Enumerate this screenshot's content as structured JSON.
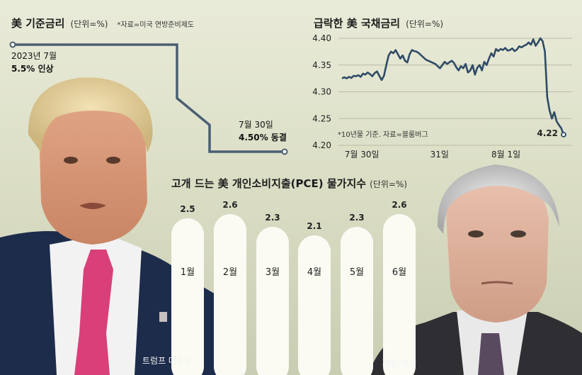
{
  "chart_data": [
    {
      "type": "line",
      "title": "美 기준금리",
      "unit": "(단위=%)",
      "source": "*자료=미국 연방준비제도",
      "x": [
        "2023년 7월",
        "",
        "",
        "",
        "",
        "7월 30일"
      ],
      "y": [
        5.5,
        5.5,
        5.0,
        4.75,
        4.5,
        4.5
      ],
      "ylim": [
        4.5,
        5.5
      ],
      "annotations": [
        {
          "date": "2023년 7월",
          "text": "5.5% 인상"
        },
        {
          "date": "7월 30일",
          "text": "4.50% 동결"
        }
      ]
    },
    {
      "type": "line",
      "title": "급락한 美 국채금리",
      "unit": "(단위=%)",
      "source": "*10년물 기준. 자료=블룸버그",
      "ylim": [
        4.2,
        4.4
      ],
      "yticks": [
        "4.40",
        "4.35",
        "4.30",
        "4.25",
        "4.20"
      ],
      "xticks": [
        {
          "label": "7월 30일",
          "pos": 0.09
        },
        {
          "label": "31일",
          "pos": 0.44
        },
        {
          "label": "8월 1일",
          "pos": 0.74
        }
      ],
      "values": [
        4.325,
        4.327,
        4.325,
        4.328,
        4.326,
        4.33,
        4.329,
        4.331,
        4.328,
        4.334,
        4.332,
        4.336,
        4.333,
        4.329,
        4.335,
        4.338,
        4.33,
        4.322,
        4.33,
        4.35,
        4.368,
        4.375,
        4.372,
        4.378,
        4.37,
        4.362,
        4.368,
        4.358,
        4.355,
        4.37,
        4.378,
        4.376,
        4.375,
        4.372,
        4.368,
        4.364,
        4.36,
        4.358,
        4.356,
        4.354,
        4.352,
        4.348,
        4.344,
        4.35,
        4.356,
        4.352,
        4.355,
        4.358,
        4.354,
        4.346,
        4.34,
        4.348,
        4.344,
        4.352,
        4.336,
        4.34,
        4.35,
        4.332,
        4.345,
        4.35,
        4.34,
        4.356,
        4.35,
        4.362,
        4.372,
        4.366,
        4.38,
        4.376,
        4.38,
        4.378,
        4.382,
        4.377,
        4.378,
        4.381,
        4.376,
        4.379,
        4.385,
        4.383,
        4.386,
        4.388,
        4.392,
        4.388,
        4.398,
        4.386,
        4.392,
        4.4,
        4.395,
        4.375,
        4.29,
        4.265,
        4.25,
        4.262,
        4.245,
        4.238,
        4.232,
        4.22
      ],
      "end_label": "4.22"
    },
    {
      "type": "bar",
      "title": "고개 드는 美 개인소비지출(PCE) 물가지수",
      "unit": "(단위=%)",
      "categories": [
        "1월",
        "2월",
        "3월",
        "4월",
        "5월",
        "6월"
      ],
      "values": [
        2.5,
        2.6,
        2.3,
        2.1,
        2.3,
        2.6
      ],
      "value_labels": [
        "2.5",
        "2.6",
        "2.3",
        "2.1",
        "2.3",
        "2.6"
      ]
    }
  ],
  "captions": {
    "left": "트럼프 대통령",
    "right": "파월 의장"
  }
}
